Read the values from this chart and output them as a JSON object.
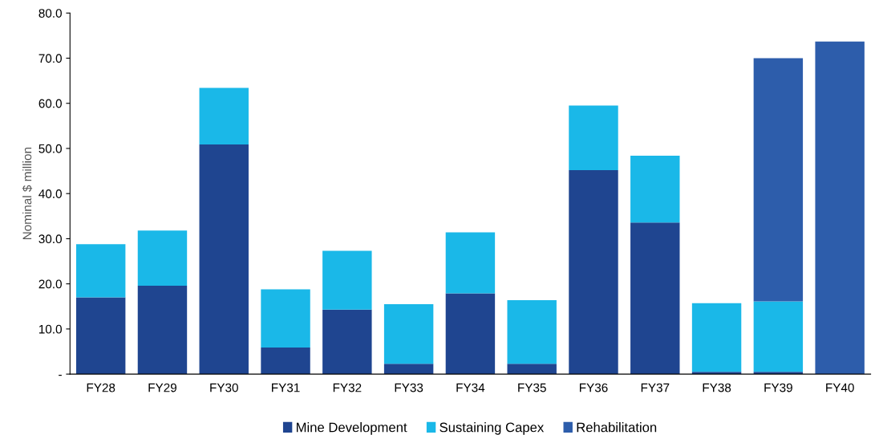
{
  "chart_data": {
    "type": "bar",
    "stacked": true,
    "ylabel": "Nominal $ million",
    "categories": [
      "FY28",
      "FY29",
      "FY30",
      "FY31",
      "FY32",
      "FY33",
      "FY34",
      "FY35",
      "FY36",
      "FY37",
      "FY38",
      "FY39",
      "FY40"
    ],
    "series": [
      {
        "name": "Mine Development",
        "color": "#1f4590",
        "values": [
          17.0,
          19.6,
          50.9,
          5.9,
          14.3,
          2.3,
          17.9,
          2.3,
          45.2,
          33.6,
          0.5,
          0.5,
          null
        ]
      },
      {
        "name": "Sustaining Capex",
        "color": "#1ab8e8",
        "values": [
          11.8,
          12.2,
          12.5,
          12.9,
          13.0,
          13.2,
          13.5,
          14.1,
          14.3,
          14.8,
          15.2,
          15.6,
          null
        ]
      },
      {
        "name": "Rehabilitation",
        "color": "#2d5dab",
        "values": [
          null,
          null,
          null,
          null,
          null,
          null,
          null,
          null,
          null,
          null,
          null,
          53.9,
          73.7
        ]
      }
    ],
    "ylim": [
      0,
      80
    ],
    "yticks": [
      {
        "value": 0,
        "label": "-"
      },
      {
        "value": 10,
        "label": "10.0"
      },
      {
        "value": 20,
        "label": "20.0"
      },
      {
        "value": 30,
        "label": "30.0"
      },
      {
        "value": 40,
        "label": "40.0"
      },
      {
        "value": 50,
        "label": "50.0"
      },
      {
        "value": 60,
        "label": "60.0"
      },
      {
        "value": 70,
        "label": "70.0"
      },
      {
        "value": 80,
        "label": "80.0"
      }
    ],
    "grid": false,
    "legend": "bottom"
  }
}
